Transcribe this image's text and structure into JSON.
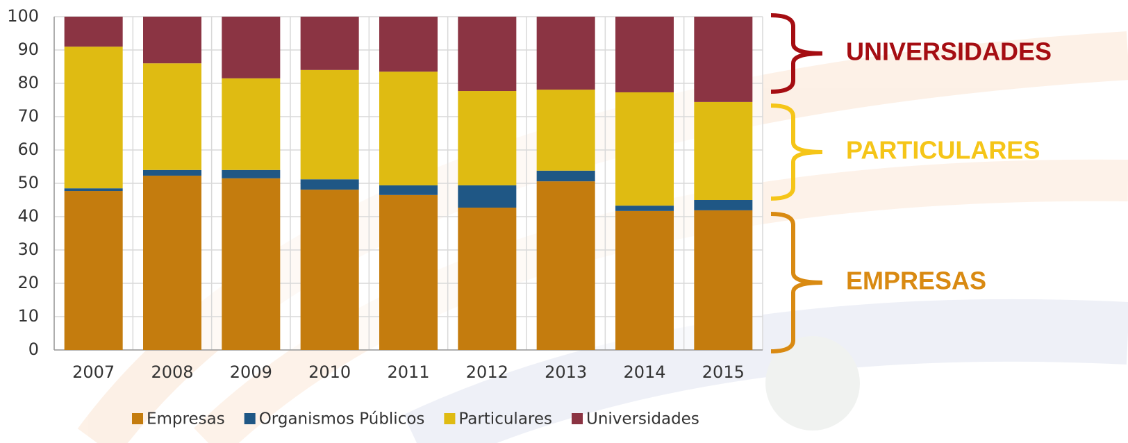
{
  "chart_data": {
    "type": "stacked_bar",
    "categories": [
      "2007",
      "2008",
      "2009",
      "2010",
      "2011",
      "2012",
      "2013",
      "2014",
      "2015"
    ],
    "series": [
      {
        "name": "Empresas",
        "color": "#c47c0e",
        "values": [
          47.7,
          52.3,
          51.5,
          48.1,
          46.5,
          42.7,
          50.6,
          41.7,
          41.9
        ]
      },
      {
        "name": "Organismos Públicos",
        "color": "#1f5785",
        "values": [
          0.8,
          1.7,
          2.5,
          3.1,
          2.9,
          6.7,
          3.2,
          1.6,
          3.1
        ]
      },
      {
        "name": "Particulares",
        "color": "#dfbb12",
        "values": [
          42.5,
          32.0,
          27.5,
          32.8,
          34.1,
          28.3,
          24.3,
          34.0,
          29.4
        ]
      },
      {
        "name": "Universidades",
        "color": "#8b3443",
        "values": [
          9.0,
          14.0,
          18.5,
          16.0,
          16.5,
          22.3,
          21.9,
          22.7,
          25.6
        ]
      }
    ],
    "ylim": [
      0,
      100
    ],
    "yticks": [
      0,
      10,
      20,
      30,
      40,
      50,
      60,
      70,
      80,
      90,
      100
    ],
    "grid": true,
    "legend": "bottom",
    "annotations": [
      {
        "text": "UNIVERSIDADES",
        "color": "#a50d12"
      },
      {
        "text": "PARTICULARES",
        "color": "#f5c518"
      },
      {
        "text": "EMPRESAS",
        "color": "#d98a12"
      }
    ]
  }
}
